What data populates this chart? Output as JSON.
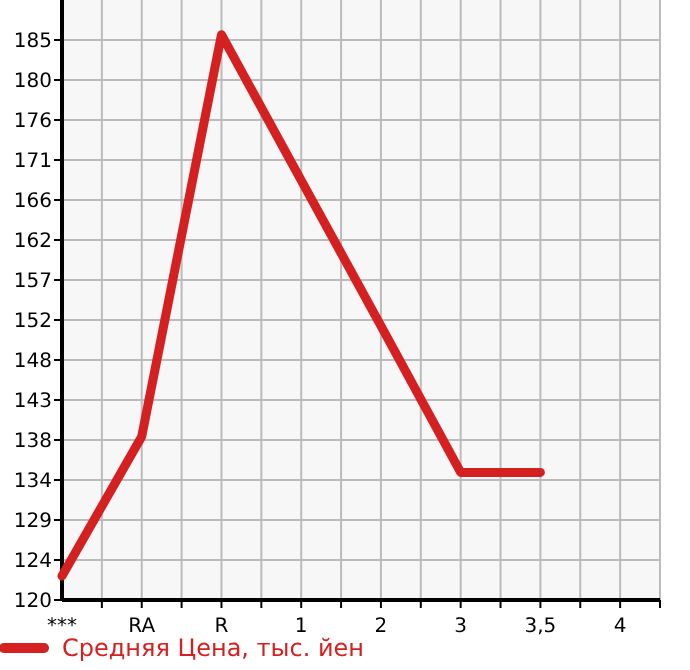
{
  "chart_data": {
    "type": "line",
    "categories": [
      "***",
      "RA",
      "R",
      "1",
      "2",
      "3",
      "3,5",
      "4"
    ],
    "series": [
      {
        "name": "Средняя Цена, тыс. йен",
        "color": "#d42020",
        "values": [
          122.4,
          138.7,
          185.6,
          168.6,
          151.6,
          134.5,
          134.5,
          null
        ]
      }
    ],
    "ylim": [
      119.6,
      189.65
    ],
    "yticks": [
      {
        "value": 119.6,
        "label": "120"
      },
      {
        "value": 124.27,
        "label": "124"
      },
      {
        "value": 128.94,
        "label": "129"
      },
      {
        "value": 133.61,
        "label": "134"
      },
      {
        "value": 138.28,
        "label": "138"
      },
      {
        "value": 142.95,
        "label": "143"
      },
      {
        "value": 147.62,
        "label": "148"
      },
      {
        "value": 152.29,
        "label": "152"
      },
      {
        "value": 156.96,
        "label": "157"
      },
      {
        "value": 161.63,
        "label": "162"
      },
      {
        "value": 166.3,
        "label": "166"
      },
      {
        "value": 170.97,
        "label": "171"
      },
      {
        "value": 175.64,
        "label": "176"
      },
      {
        "value": 180.31,
        "label": "180"
      },
      {
        "value": 184.98,
        "label": "185"
      }
    ],
    "grid": true,
    "legend": "bottom",
    "marker": "none",
    "line_style": "solid"
  }
}
